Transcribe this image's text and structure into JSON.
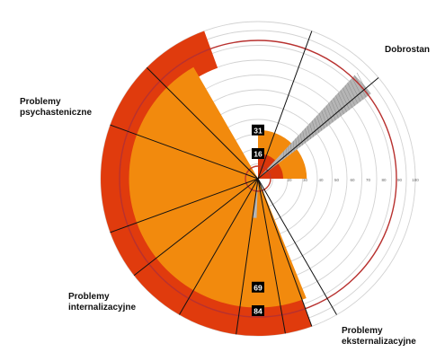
{
  "chart_data": {
    "type": "radial",
    "r_axis": {
      "ticks": [
        20,
        30,
        40,
        50,
        60,
        70,
        80,
        90,
        100
      ],
      "tick_labels": [
        "20",
        "30",
        "40",
        "50",
        "60",
        "70",
        "80",
        "90",
        "100"
      ],
      "range": [
        0,
        100
      ]
    },
    "reference_circles": [
      {
        "value": 8,
        "color": "#c0392b"
      },
      {
        "value": 88,
        "color": "#b8312f"
      }
    ],
    "categories": [
      {
        "id": "dobrostan",
        "label": "Dobrostan",
        "start_deg": 38,
        "end_deg": 70,
        "label_lines": [
          "Dobrostan"
        ]
      },
      {
        "id": "psychasteniczne",
        "label": "Problemy psychasteniczne",
        "start_deg": 70,
        "end_deg": 160,
        "label_lines": [
          "Problemy",
          "psychasteniczne"
        ]
      },
      {
        "id": "internalizacyjne",
        "label": "Problemy internalizacyjne",
        "start_deg": 160,
        "end_deg": 262,
        "label_lines": [
          "Problemy",
          "internalizacyjne"
        ]
      },
      {
        "id": "eksternalizacyjne",
        "label": "Problemy eksternalizacyjne",
        "start_deg": 262,
        "end_deg": 302,
        "label_lines": [
          "Problemy",
          "eksternalizacyjne"
        ]
      }
    ],
    "layers": [
      {
        "name": "84",
        "color": "#e03b0d",
        "segments": [
          {
            "start_deg": 110,
            "end_deg": 290,
            "r_inner": 75,
            "r_outer": 100
          }
        ]
      },
      {
        "name": "69",
        "color": "#f28a0d",
        "segments": [
          {
            "start_deg": 120,
            "end_deg": 292,
            "r_inner": 0,
            "r_outer": 82
          }
        ]
      },
      {
        "name": "31",
        "color": "#f28a0d",
        "segments": [
          {
            "start_deg": 0,
            "end_deg": 90,
            "r_inner": 0,
            "r_outer": 31
          }
        ]
      },
      {
        "name": "16",
        "color": "#d9360b",
        "segments": [
          {
            "start_deg": 0,
            "end_deg": 90,
            "r_inner": 0,
            "r_outer": 16
          }
        ]
      },
      {
        "name": "wedge",
        "color": "#b5b5b5",
        "segments": [
          {
            "start_deg": 37,
            "end_deg": 47,
            "r_inner": 0,
            "r_outer": 90
          },
          {
            "start_deg": 262,
            "end_deg": 268,
            "r_inner": 5,
            "r_outer": 25
          }
        ]
      }
    ],
    "value_labels": [
      {
        "text": "31",
        "angle_deg": 90,
        "r": 31
      },
      {
        "text": "16",
        "angle_deg": 90,
        "r": 16
      },
      {
        "text": "69",
        "angle_deg": 270,
        "r": 69
      },
      {
        "text": "84",
        "angle_deg": 270,
        "r": 84
      }
    ],
    "spokes_deg": [
      40,
      70,
      135,
      160,
      200,
      218,
      240,
      262,
      280,
      290,
      300
    ]
  }
}
